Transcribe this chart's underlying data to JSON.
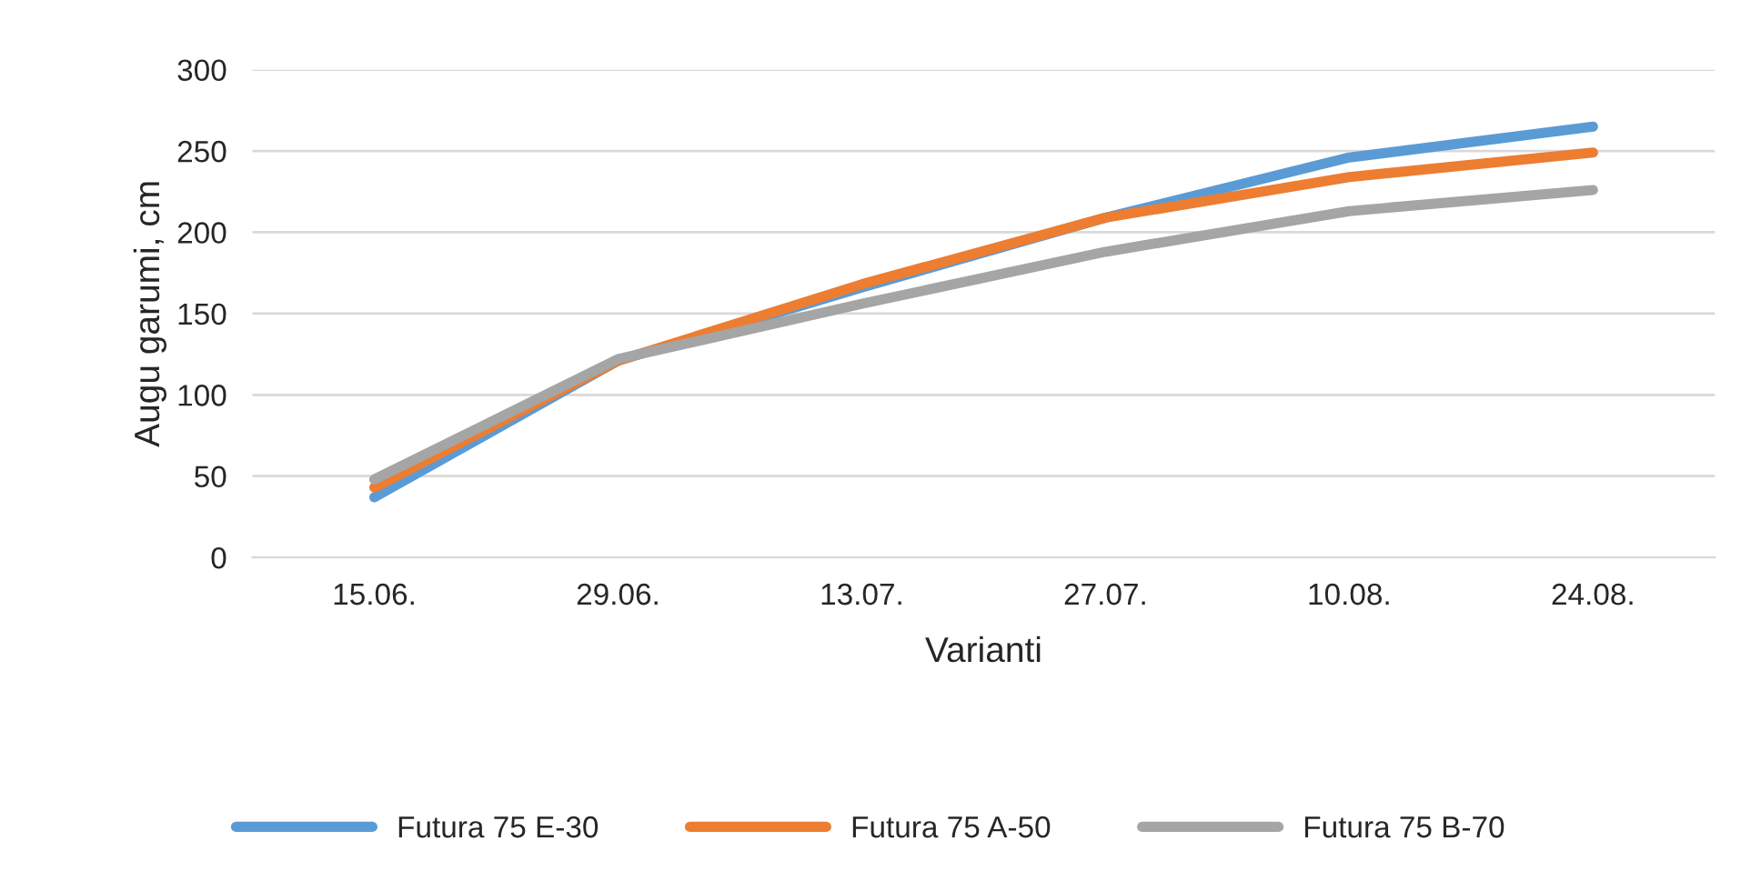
{
  "chart_data": {
    "type": "line",
    "xlabel": "Varianti",
    "ylabel": "Augu garumi, cm",
    "categories": [
      "15.06.",
      "29.06.",
      "13.07.",
      "27.07.",
      "10.08.",
      "24.08."
    ],
    "series": [
      {
        "name": "Futura 75 E-30",
        "color": "#5b9bd5",
        "values": [
          37,
          121,
          166,
          209,
          246,
          265
        ]
      },
      {
        "name": "Futura 75 A-50",
        "color": "#ed7d31",
        "values": [
          43,
          121,
          168,
          209,
          234,
          249
        ]
      },
      {
        "name": "Futura 75 B-70",
        "color": "#a5a5a5",
        "values": [
          48,
          122,
          156,
          188,
          213,
          226
        ]
      }
    ],
    "ylim": [
      0,
      300
    ],
    "yticks": [
      0,
      50,
      100,
      150,
      200,
      250,
      300
    ],
    "grid": "y",
    "legend": "bottom",
    "marker": "none",
    "line_style": "solid"
  }
}
